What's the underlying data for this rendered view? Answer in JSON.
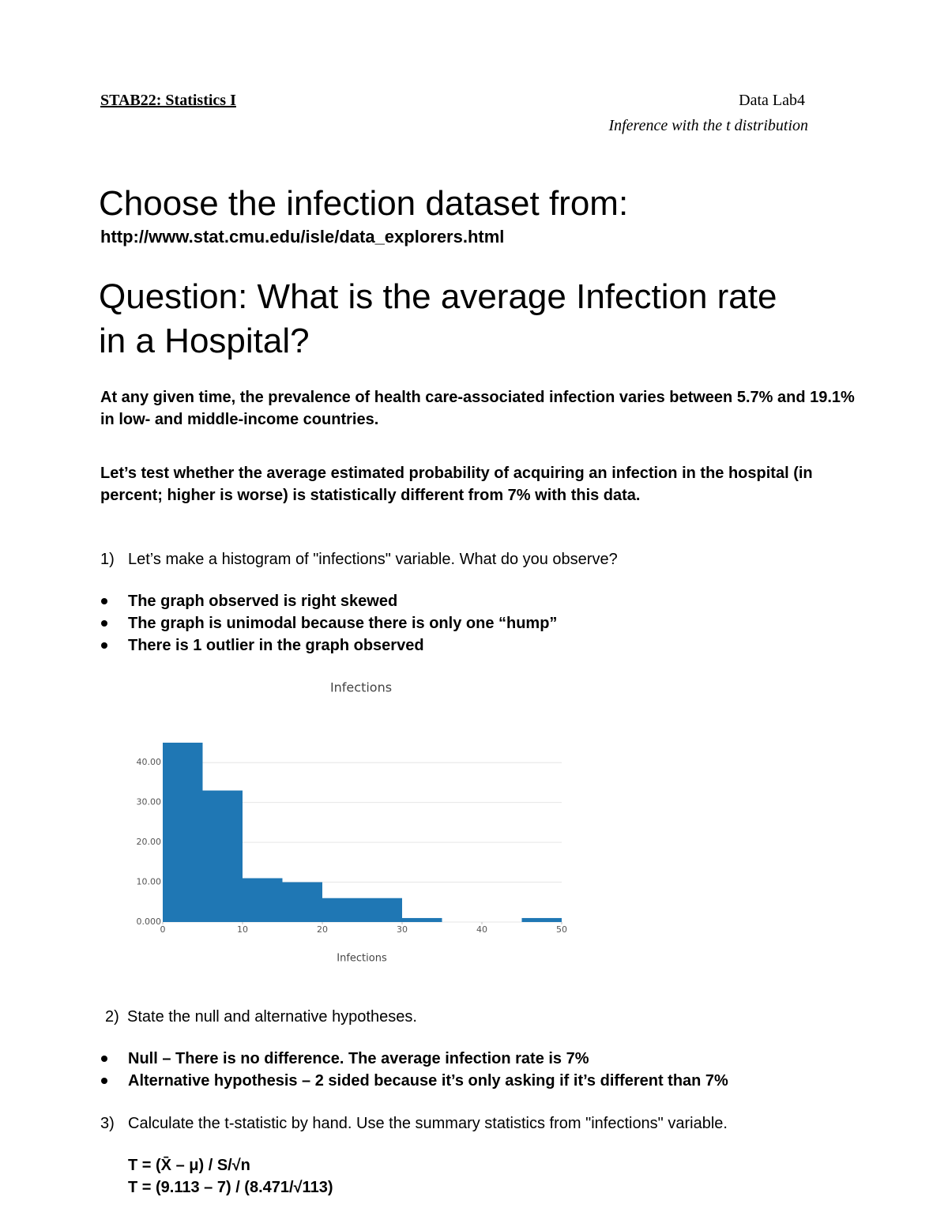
{
  "header": {
    "course": "STAB22: Statistics I",
    "lab": "Data Lab4",
    "subtitle": "Inference with the t distribution"
  },
  "heading": "Choose the infection dataset from:",
  "url": "http://www.stat.cmu.edu/isle/data_explorers.html",
  "question": "Question: What is the average Infection rate in a Hospital?",
  "paragraphs": [
    "At any given time, the prevalence of health care-associated infection varies between 5.7% and 19.1% in low- and middle-income countries.",
    "Let’s test whether the average estimated probability of acquiring an infection in the hospital (in percent; higher is worse) is statistically different from 7% with this data."
  ],
  "q1": {
    "number": "1)",
    "text": "Let’s make a histogram of \"infections\" variable. What do you observe?",
    "bullets": [
      "The graph observed is right skewed",
      "The graph is unimodal because there is only one “hump”",
      "There is 1 outlier in the graph observed"
    ]
  },
  "chart_data": {
    "type": "histogram",
    "title": "Infections",
    "x_label": "Infections",
    "bins": [
      0,
      5,
      10,
      15,
      20,
      25,
      30,
      35,
      40,
      45,
      50
    ],
    "values": [
      45,
      33,
      11,
      10,
      6,
      6,
      1,
      0,
      0,
      1
    ],
    "color": "#1f77b4",
    "xlim": [
      0,
      50
    ],
    "xticks": [
      0,
      10,
      20,
      30,
      40,
      50
    ],
    "ylim": [
      0,
      45
    ],
    "yticks": [
      {
        "value": 0,
        "label": "0.000"
      },
      {
        "value": 10,
        "label": "10.00"
      },
      {
        "value": 20,
        "label": "20.00"
      },
      {
        "value": 30,
        "label": "30.00"
      },
      {
        "value": 40,
        "label": "40.00"
      }
    ],
    "grid": true
  },
  "q2": {
    "number": "2)",
    "text": "State the null and alternative hypotheses.",
    "bullets": [
      "Null – There is no difference. The average infection rate is 7%",
      "Alternative hypothesis – 2 sided because it’s only asking if it’s different than 7%"
    ]
  },
  "q3": {
    "number": "3)",
    "text": "Calculate the t-statistic by hand. Use the summary statistics from \"infections\" variable.",
    "formulas": [
      "T = (X̄ – μ) / S/√n",
      "T = (9.113 – 7) / (8.471/√113)"
    ]
  }
}
